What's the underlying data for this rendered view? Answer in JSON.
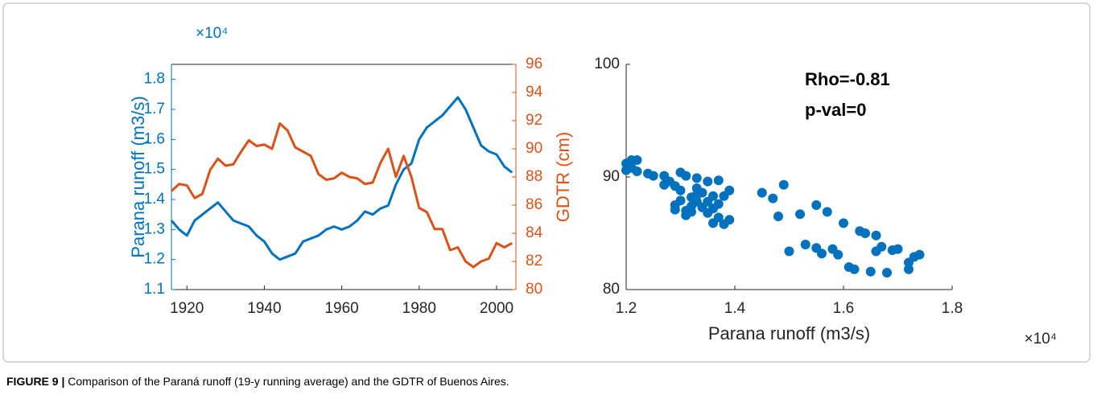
{
  "chart_data": [
    {
      "type": "line",
      "ylabel": "Parana runoff (m3/s)",
      "y_multiplier": "×10⁴",
      "y2label": "GDTR (cm)",
      "x": [
        1916,
        1918,
        1920,
        1922,
        1924,
        1926,
        1928,
        1930,
        1932,
        1934,
        1936,
        1938,
        1940,
        1942,
        1944,
        1946,
        1948,
        1950,
        1952,
        1954,
        1956,
        1958,
        1960,
        1962,
        1964,
        1966,
        1968,
        1970,
        1972,
        1974,
        1976,
        1978,
        1980,
        1982,
        1984,
        1986,
        1988,
        1990,
        1992,
        1994,
        1996,
        1998,
        2000,
        2002,
        2004
      ],
      "series": [
        {
          "color": "#0072bd",
          "values": [
            1.33,
            1.3,
            1.28,
            1.33,
            1.35,
            1.37,
            1.39,
            1.36,
            1.33,
            1.32,
            1.31,
            1.28,
            1.26,
            1.22,
            1.2,
            1.21,
            1.22,
            1.26,
            1.27,
            1.28,
            1.3,
            1.31,
            1.3,
            1.31,
            1.33,
            1.36,
            1.35,
            1.37,
            1.38,
            1.45,
            1.5,
            1.52,
            1.6,
            1.64,
            1.66,
            1.68,
            1.71,
            1.74,
            1.7,
            1.64,
            1.58,
            1.56,
            1.55,
            1.51,
            1.49
          ]
        },
        {
          "color": "#d95319",
          "axis": "y2",
          "values": [
            87.0,
            87.5,
            87.4,
            86.5,
            86.8,
            88.5,
            89.3,
            88.8,
            88.9,
            89.8,
            90.6,
            90.2,
            90.3,
            90.0,
            91.8,
            91.3,
            90.1,
            89.8,
            89.5,
            88.2,
            87.8,
            87.9,
            88.3,
            88.0,
            87.9,
            87.5,
            87.6,
            89.0,
            90.0,
            88.0,
            89.5,
            88.0,
            85.8,
            85.5,
            84.3,
            84.3,
            82.8,
            83.0,
            82.0,
            81.6,
            82.0,
            82.2,
            83.3,
            83.0,
            83.3
          ]
        }
      ],
      "xlim": [
        1916,
        2005
      ],
      "xticks": [
        1920,
        1940,
        1960,
        1980,
        2000
      ],
      "ylim": [
        1.1,
        1.85
      ],
      "yticks": [
        1.1,
        1.2,
        1.3,
        1.4,
        1.5,
        1.6,
        1.7,
        1.8
      ],
      "y2lim": [
        80,
        96
      ],
      "y2ticks": [
        80,
        82,
        84,
        86,
        88,
        90,
        92,
        94,
        96
      ]
    },
    {
      "type": "scatter",
      "xlabel": "Parana runoff (m3/s)",
      "x_multiplier": "×10⁴",
      "annotations": [
        "Rho=-0.81",
        "p-val=0"
      ],
      "color": "#0072bd",
      "x": [
        1.2,
        1.2,
        1.21,
        1.21,
        1.22,
        1.22,
        1.24,
        1.25,
        1.27,
        1.27,
        1.28,
        1.29,
        1.29,
        1.29,
        1.3,
        1.3,
        1.3,
        1.31,
        1.31,
        1.31,
        1.32,
        1.32,
        1.32,
        1.33,
        1.33,
        1.33,
        1.33,
        1.34,
        1.34,
        1.35,
        1.35,
        1.35,
        1.36,
        1.36,
        1.36,
        1.37,
        1.37,
        1.37,
        1.38,
        1.38,
        1.39,
        1.39,
        1.45,
        1.47,
        1.48,
        1.49,
        1.5,
        1.52,
        1.53,
        1.55,
        1.55,
        1.56,
        1.57,
        1.58,
        1.59,
        1.6,
        1.61,
        1.62,
        1.63,
        1.64,
        1.65,
        1.66,
        1.66,
        1.67,
        1.68,
        1.69,
        1.7,
        1.72,
        1.72,
        1.73,
        1.74
      ],
      "values": [
        91.2,
        90.6,
        91.5,
        90.8,
        91.5,
        90.5,
        90.3,
        90.1,
        90.1,
        89.3,
        89.6,
        89.2,
        87.5,
        87.1,
        90.4,
        88.8,
        87.9,
        87.0,
        86.6,
        90.1,
        88.2,
        87.4,
        86.9,
        89.0,
        88.4,
        87.8,
        89.9,
        87.3,
        88.6,
        89.6,
        87.8,
        86.8,
        85.9,
        88.3,
        87.2,
        89.7,
        86.4,
        87.6,
        85.8,
        88.3,
        88.8,
        86.2,
        88.6,
        88.1,
        86.5,
        89.3,
        83.4,
        86.7,
        84.0,
        87.5,
        83.7,
        83.2,
        86.9,
        83.6,
        83.1,
        85.9,
        82.0,
        81.8,
        85.2,
        85.0,
        81.6,
        83.4,
        84.8,
        83.8,
        81.5,
        83.5,
        83.6,
        81.8,
        82.4,
        82.9,
        83.1
      ],
      "xlim": [
        1.2,
        1.8
      ],
      "xticks": [
        1.2,
        1.4,
        1.6,
        1.8
      ],
      "ylim": [
        80,
        100
      ],
      "yticks": [
        80,
        90,
        100
      ]
    }
  ],
  "caption": {
    "label": "FIGURE 9 |",
    "text": " Comparison of the Paraná runoff (19-y running average) and the GDTR of Buenos Aires."
  }
}
